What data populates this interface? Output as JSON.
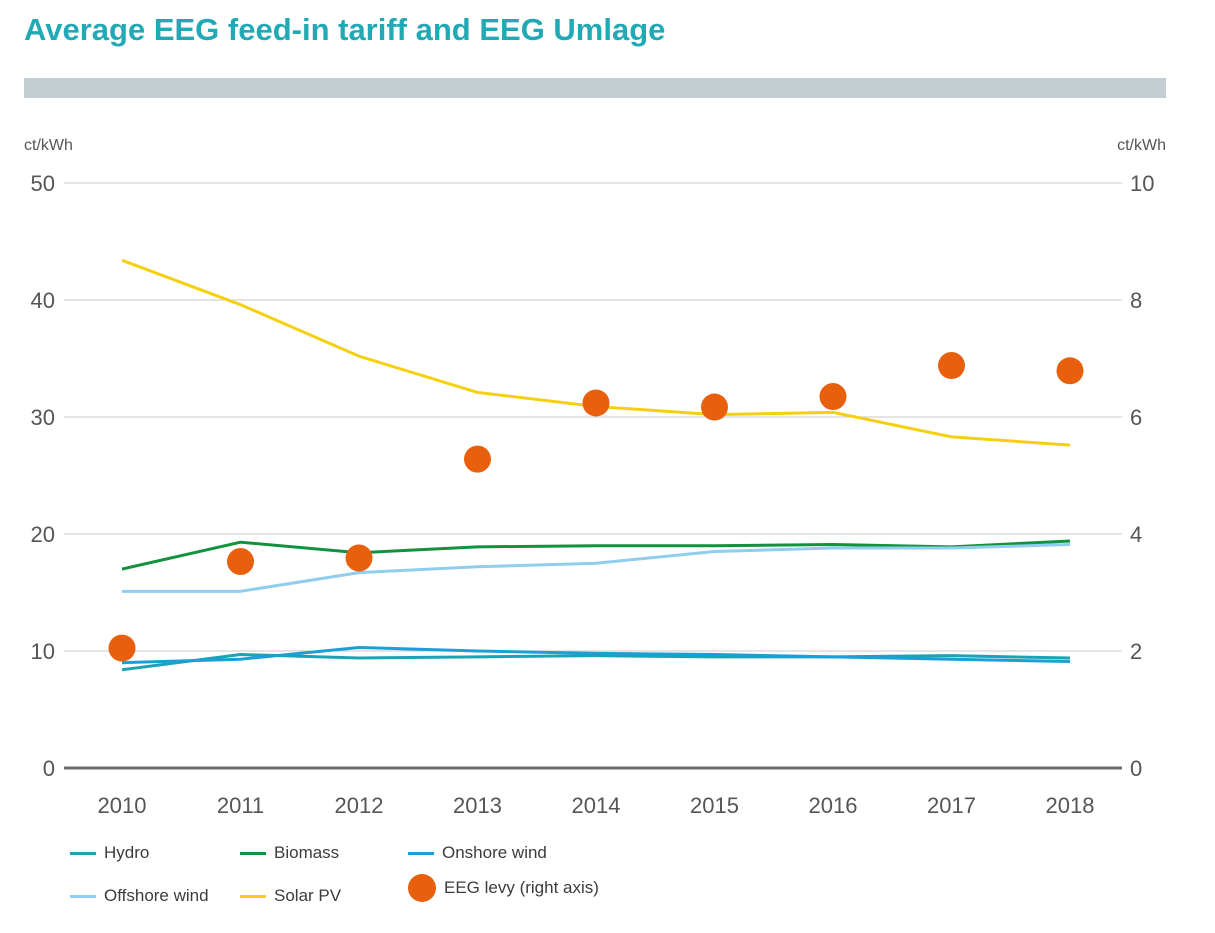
{
  "title": "Average EEG feed-in tariff and EEG Umlage",
  "chart_data": {
    "type": "line",
    "title": "Average EEG feed-in tariff and EEG Umlage",
    "ylabel_left": "ct/kWh",
    "ylabel_right": "ct/kWh",
    "ylim_left": [
      0,
      50
    ],
    "ylim_right": [
      0,
      10
    ],
    "yticks_left": [
      0,
      10,
      20,
      30,
      40,
      50
    ],
    "yticks_right": [
      0,
      2,
      4,
      6,
      8,
      10
    ],
    "categories": [
      "2010",
      "2011",
      "2012",
      "2013",
      "2014",
      "2015",
      "2016",
      "2017",
      "2018"
    ],
    "grid": true,
    "series": [
      {
        "name": "Hydro",
        "axis": "left",
        "style": "line",
        "color": "#1ba3b4",
        "values": [
          8.4,
          9.7,
          9.4,
          9.5,
          9.6,
          9.5,
          9.5,
          9.6,
          9.4
        ]
      },
      {
        "name": "Biomass",
        "axis": "left",
        "style": "line",
        "color": "#12923e",
        "values": [
          17.0,
          19.3,
          18.4,
          18.9,
          19.0,
          19.0,
          19.1,
          18.9,
          19.4
        ]
      },
      {
        "name": "Onshore wind",
        "axis": "left",
        "style": "line",
        "color": "#1a9fd6",
        "values": [
          9.0,
          9.3,
          10.3,
          10.0,
          9.8,
          9.7,
          9.5,
          9.3,
          9.1
        ]
      },
      {
        "name": "Offshore wind",
        "axis": "left",
        "style": "line",
        "color": "#90cdee",
        "values": [
          15.1,
          15.1,
          16.7,
          17.2,
          17.5,
          18.5,
          18.8,
          18.8,
          19.1
        ]
      },
      {
        "name": "Solar PV",
        "axis": "left",
        "style": "line",
        "color": "#f5d010",
        "values": [
          43.4,
          39.6,
          35.2,
          32.1,
          30.9,
          30.2,
          30.4,
          28.3,
          27.6
        ]
      },
      {
        "name": "EEG levy (right axis)",
        "axis": "right",
        "style": "dot",
        "color": "#e8600e",
        "values": [
          2.05,
          3.53,
          3.59,
          5.28,
          6.24,
          6.17,
          6.35,
          6.88,
          6.79
        ]
      }
    ],
    "legend": "bottom-left"
  }
}
